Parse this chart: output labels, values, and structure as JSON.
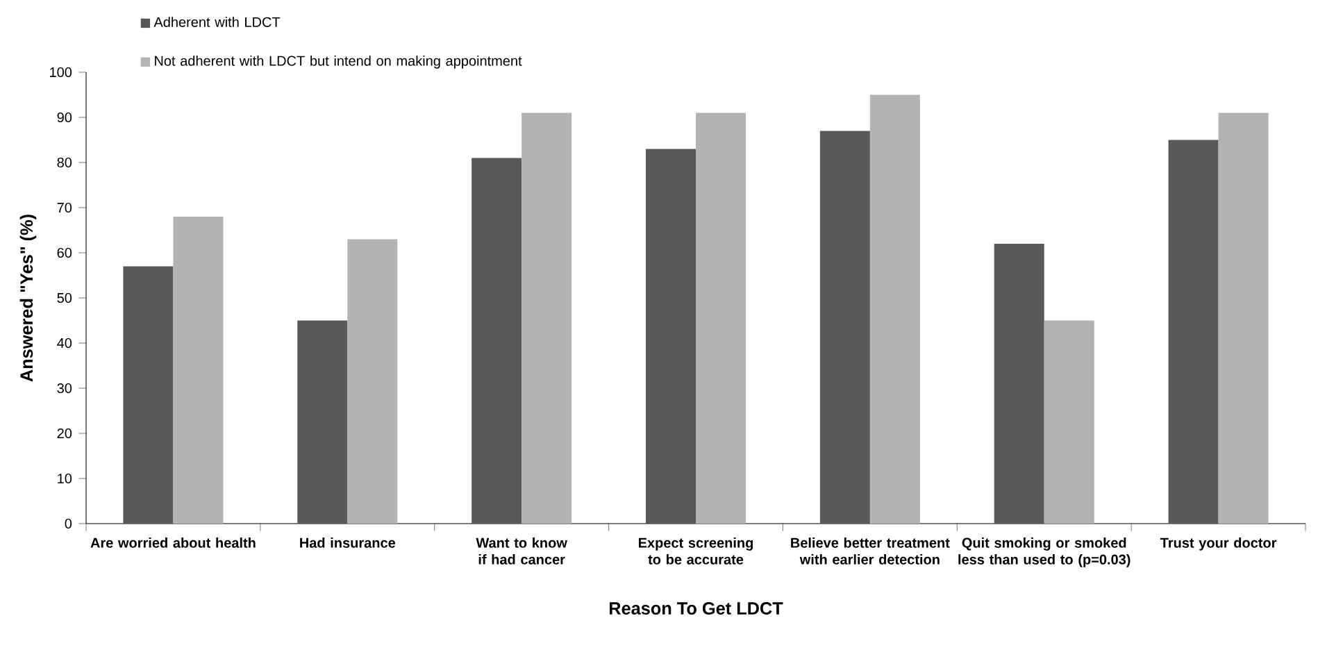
{
  "chart_data": {
    "type": "bar",
    "xlabel": "Reason To Get LDCT",
    "ylabel": "Answered \"Yes\" (%)",
    "categories": [
      "Are worried about health",
      "Had insurance",
      "Want to know if had cancer",
      "Expect screening to be accurate",
      "Believe  better treatment with earlier detection",
      "Quit smoking or smoked less than used to (p=0.03)",
      "Trust your doctor"
    ],
    "series": [
      {
        "name": "Adherent with LDCT",
        "color": "#595959",
        "values": [
          57,
          45,
          81,
          83,
          87,
          62,
          85
        ]
      },
      {
        "name": "Not adherent with LDCT but intend on making appointment",
        "color": "#b3b3b3",
        "values": [
          68,
          63,
          91,
          91,
          95,
          45,
          91
        ]
      }
    ],
    "ylim": [
      0,
      100
    ],
    "yticks": [
      0,
      10,
      20,
      30,
      40,
      50,
      60,
      70,
      80,
      90,
      100
    ],
    "grid": false,
    "legend": "top left"
  }
}
